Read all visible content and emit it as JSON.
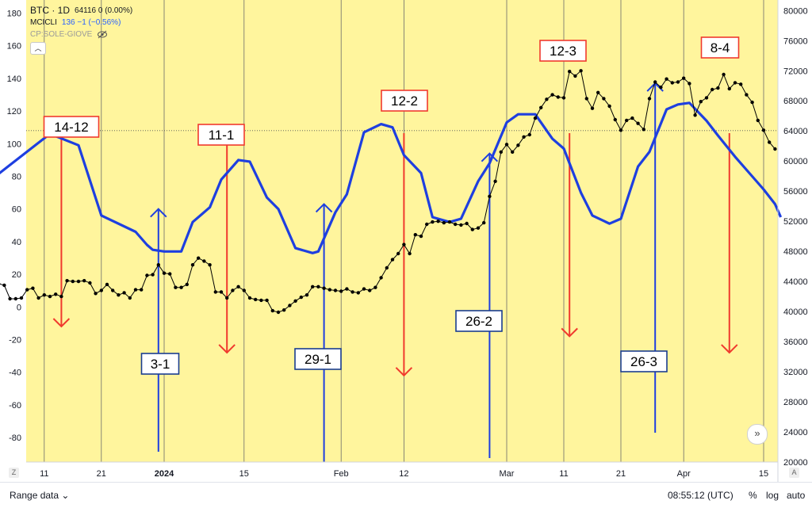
{
  "legend": {
    "symbol": "BTC · 1D",
    "price_text": "64116  0 (0.00%)",
    "indicator": "MCICLI",
    "indicator_value": "136  −1 (−0.56%)",
    "cp": "CP:SOLE-GIOVE",
    "eye_icon": "eye-off-icon",
    "collapse_icon": "chevron-up-icon"
  },
  "footer": {
    "range_label": "Range data",
    "time": "08:55:12 (UTC)",
    "percent": "%",
    "log": "log",
    "auto": "auto",
    "z": "Z",
    "a": "A"
  },
  "colors": {
    "background": "#fff59d",
    "blue": "#1e3fe0",
    "red": "#f03a2e",
    "price": "#000000"
  },
  "chart_data": {
    "type": "line",
    "x_tick_labels": [
      "11",
      "21",
      "2024",
      "15",
      "Feb",
      "12",
      "Mar",
      "11",
      "21",
      "Apr",
      "15"
    ],
    "x_tick_days": [
      -21,
      -11,
      0,
      14,
      31,
      42,
      60,
      70,
      80,
      91,
      105
    ],
    "left_axis": {
      "ticks": [
        180,
        160,
        140,
        120,
        100,
        80,
        60,
        40,
        20,
        0,
        -20,
        -40,
        -60,
        -80
      ],
      "ylim": [
        -95,
        188
      ]
    },
    "right_axis": {
      "ticks": [
        80000,
        76000,
        72000,
        68000,
        64000,
        60000,
        56000,
        52000,
        48000,
        44000,
        40000,
        36000,
        32000,
        28000,
        24000,
        20000
      ],
      "ylim": [
        20000,
        81400
      ]
    },
    "current_level": 108,
    "series": [
      {
        "name": "MCICLI",
        "axis": "left",
        "x": [
          -31,
          -27,
          -20,
          -15,
          -11,
          -5,
          -3,
          -2,
          0,
          3,
          5,
          8,
          10,
          13,
          15,
          18,
          20,
          23,
          26,
          27,
          30,
          32,
          35,
          38,
          40,
          42,
          45,
          47,
          50,
          52,
          55,
          57,
          60,
          62,
          65,
          68,
          70,
          73,
          75,
          78,
          80,
          83,
          85,
          88,
          90,
          92,
          95,
          97,
          100,
          103,
          105,
          107,
          108
        ],
        "values": [
          76,
          87,
          106,
          99,
          56,
          46,
          38,
          35,
          34,
          34,
          52,
          61,
          78,
          90,
          89,
          67,
          60,
          36,
          33,
          34,
          58,
          69,
          107,
          112,
          110,
          93,
          82,
          55,
          52,
          54,
          77,
          88,
          113,
          118,
          118,
          103,
          97,
          70,
          56,
          51,
          54,
          86,
          95,
          121,
          124,
          125,
          114,
          105,
          92,
          80,
          72,
          63,
          55
        ]
      },
      {
        "name": "BTC",
        "axis": "right",
        "x": [
          -31,
          -30,
          -29,
          -28,
          -27,
          -26,
          -25,
          -24,
          -23,
          -22,
          -21,
          -20,
          -19,
          -18,
          -17,
          -16,
          -15,
          -14,
          -13,
          -12,
          -11,
          -10,
          -9,
          -8,
          -7,
          -6,
          -5,
          -4,
          -3,
          -2,
          -1,
          0,
          1,
          2,
          3,
          4,
          5,
          6,
          7,
          8,
          9,
          10,
          11,
          12,
          13,
          14,
          15,
          16,
          17,
          18,
          19,
          20,
          21,
          22,
          23,
          24,
          25,
          26,
          27,
          28,
          29,
          30,
          31,
          32,
          33,
          34,
          35,
          36,
          37,
          38,
          39,
          40,
          41,
          42,
          43,
          44,
          45,
          46,
          47,
          48,
          49,
          50,
          51,
          52,
          53,
          54,
          55,
          56,
          57,
          58,
          59,
          60,
          61,
          62,
          63,
          64,
          65,
          66,
          67,
          68,
          69,
          70,
          71,
          72,
          73,
          74,
          75,
          76,
          77,
          78,
          79,
          80,
          81,
          82,
          83,
          84,
          85,
          86,
          87,
          88,
          89,
          90,
          91,
          92,
          93,
          94,
          95,
          96,
          97,
          98,
          99,
          100,
          101,
          102,
          103,
          104,
          105,
          106,
          107
        ],
        "values": [
          44100,
          43900,
          43700,
          43500,
          41700,
          41700,
          41800,
          42900,
          43100,
          41800,
          42200,
          42000,
          42300,
          42000,
          44100,
          44000,
          44000,
          44100,
          43800,
          42400,
          42800,
          43600,
          42800,
          42200,
          42500,
          41800,
          42900,
          42900,
          44800,
          44900,
          46200,
          45100,
          45000,
          43200,
          43200,
          43600,
          46200,
          47100,
          46700,
          46200,
          42600,
          42600,
          41800,
          42800,
          43300,
          42800,
          41800,
          41600,
          41500,
          41500,
          40100,
          39900,
          40200,
          40800,
          41400,
          41900,
          42200,
          43300,
          43300,
          43100,
          42900,
          42800,
          42700,
          43000,
          42600,
          42500,
          43000,
          42800,
          43200,
          44500,
          45800,
          46900,
          47700,
          48900,
          47700,
          50200,
          50000,
          51600,
          51900,
          52000,
          51800,
          51900,
          51600,
          51500,
          51700,
          50900,
          51100,
          51800,
          55300,
          57300,
          61200,
          62200,
          61200,
          62100,
          63200,
          63500,
          65700,
          67100,
          68200,
          68800,
          68500,
          68400,
          71900,
          71300,
          72000,
          68300,
          67000,
          69100,
          68300,
          67300,
          65500,
          64100,
          65400,
          65700,
          65000,
          64200,
          68300,
          70500,
          69800,
          70900,
          70400,
          70500,
          71000,
          70300,
          66100,
          67900,
          68400,
          69500,
          69700,
          71500,
          69600,
          70400,
          70200,
          68800,
          67800,
          65400,
          64100,
          62500,
          61600
        ]
      }
    ],
    "annotations": [
      {
        "label": "14-12",
        "color": "red",
        "day": -18,
        "direction": "down",
        "level": -12
      },
      {
        "label": "11-1",
        "color": "red",
        "day": 11,
        "direction": "down",
        "level": -28
      },
      {
        "label": "12-2",
        "color": "red",
        "day": 42,
        "direction": "down",
        "level": -42
      },
      {
        "label": "12-3",
        "color": "red",
        "day": 71,
        "direction": "down",
        "level": -18
      },
      {
        "label": "8-4",
        "color": "red",
        "day": 99,
        "direction": "down",
        "level": -28
      },
      {
        "label": "3-1",
        "color": "blue",
        "day": -1,
        "direction": "up",
        "level": 60
      },
      {
        "label": "29-1",
        "color": "blue",
        "day": 28,
        "direction": "up",
        "level": 63
      },
      {
        "label": "26-2",
        "color": "blue",
        "day": 57,
        "direction": "up",
        "level": 94
      },
      {
        "label": "26-3",
        "color": "blue",
        "day": 86,
        "direction": "up",
        "level": 137
      }
    ]
  }
}
